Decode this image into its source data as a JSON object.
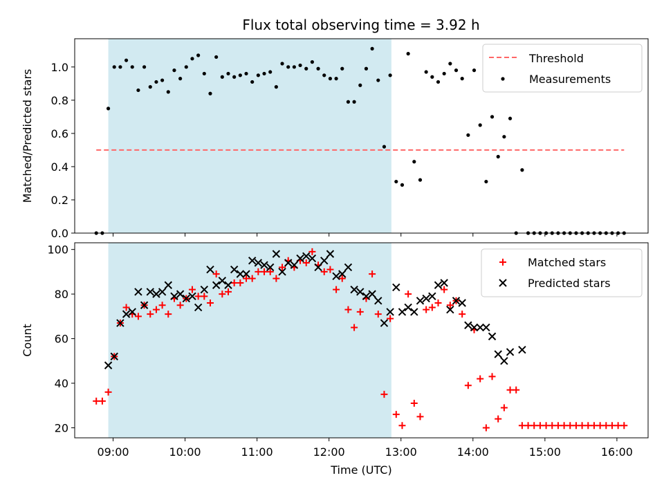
{
  "title": "Flux total observing time = 3.92 h",
  "colors": {
    "shade": "#add8e6",
    "threshold": "#ff6666",
    "measurement": "#000000",
    "matched": "#ff0000",
    "predicted": "#000000"
  },
  "chart_data": [
    {
      "type": "scatter",
      "ylabel": "Matched/Predicted stars",
      "ylim": [
        0,
        1.17
      ],
      "xlim": [
        "08:28",
        "16:26"
      ],
      "yticks": [
        0.0,
        0.2,
        0.4,
        0.6,
        0.8,
        1.0
      ],
      "ytick_labels": [
        "0.0",
        "0.2",
        "0.4",
        "0.6",
        "0.8",
        "1.0"
      ],
      "shaded_span": [
        "08:56",
        "12:52"
      ],
      "legend": "top-right",
      "threshold": {
        "name": "Threshold",
        "value": 0.5,
        "x_range": [
          "08:46",
          "16:06"
        ]
      },
      "series": [
        {
          "name": "Measurements",
          "points": [
            [
              "08:46",
              0.0
            ],
            [
              "08:51",
              0.0
            ],
            [
              "08:56",
              0.75
            ],
            [
              "09:01",
              1.0
            ],
            [
              "09:06",
              1.0
            ],
            [
              "09:11",
              1.04
            ],
            [
              "09:16",
              1.0
            ],
            [
              "09:21",
              0.86
            ],
            [
              "09:26",
              1.0
            ],
            [
              "09:31",
              0.88
            ],
            [
              "09:36",
              0.91
            ],
            [
              "09:41",
              0.92
            ],
            [
              "09:46",
              0.85
            ],
            [
              "09:51",
              0.98
            ],
            [
              "09:56",
              0.93
            ],
            [
              "10:01",
              1.0
            ],
            [
              "10:06",
              1.05
            ],
            [
              "10:11",
              1.07
            ],
            [
              "10:16",
              0.96
            ],
            [
              "10:21",
              0.84
            ],
            [
              "10:26",
              1.06
            ],
            [
              "10:31",
              0.94
            ],
            [
              "10:36",
              0.96
            ],
            [
              "10:41",
              0.94
            ],
            [
              "10:46",
              0.95
            ],
            [
              "10:51",
              0.96
            ],
            [
              "10:56",
              0.91
            ],
            [
              "11:01",
              0.95
            ],
            [
              "11:06",
              0.96
            ],
            [
              "11:11",
              0.97
            ],
            [
              "11:16",
              0.88
            ],
            [
              "11:21",
              1.02
            ],
            [
              "11:26",
              1.0
            ],
            [
              "11:31",
              1.0
            ],
            [
              "11:36",
              1.01
            ],
            [
              "11:41",
              0.99
            ],
            [
              "11:46",
              1.03
            ],
            [
              "11:51",
              0.99
            ],
            [
              "11:56",
              0.95
            ],
            [
              "12:01",
              0.93
            ],
            [
              "12:06",
              0.93
            ],
            [
              "12:11",
              0.99
            ],
            [
              "12:16",
              0.79
            ],
            [
              "12:21",
              0.79
            ],
            [
              "12:26",
              0.89
            ],
            [
              "12:31",
              0.99
            ],
            [
              "12:36",
              1.11
            ],
            [
              "12:41",
              0.92
            ],
            [
              "12:46",
              0.52
            ],
            [
              "12:51",
              0.95
            ],
            [
              "12:56",
              0.31
            ],
            [
              "13:01",
              0.29
            ],
            [
              "13:06",
              1.08
            ],
            [
              "13:11",
              0.43
            ],
            [
              "13:16",
              0.32
            ],
            [
              "13:21",
              0.97
            ],
            [
              "13:26",
              0.94
            ],
            [
              "13:31",
              0.91
            ],
            [
              "13:36",
              0.96
            ],
            [
              "13:41",
              1.02
            ],
            [
              "13:46",
              0.98
            ],
            [
              "13:51",
              0.93
            ],
            [
              "13:56",
              0.59
            ],
            [
              "14:01",
              0.98
            ],
            [
              "14:06",
              0.65
            ],
            [
              "14:11",
              0.31
            ],
            [
              "14:16",
              0.7
            ],
            [
              "14:21",
              0.46
            ],
            [
              "14:26",
              0.58
            ],
            [
              "14:31",
              0.69
            ],
            [
              "14:36",
              0.0
            ],
            [
              "14:41",
              0.38
            ],
            [
              "14:46",
              0.0
            ],
            [
              "14:51",
              0.0
            ],
            [
              "14:56",
              0.0
            ],
            [
              "15:01",
              0.0
            ],
            [
              "15:06",
              0.0
            ],
            [
              "15:11",
              0.0
            ],
            [
              "15:16",
              0.0
            ],
            [
              "15:21",
              0.0
            ],
            [
              "15:26",
              0.0
            ],
            [
              "15:31",
              0.0
            ],
            [
              "15:36",
              0.0
            ],
            [
              "15:41",
              0.0
            ],
            [
              "15:46",
              0.0
            ],
            [
              "15:51",
              0.0
            ],
            [
              "15:56",
              0.0
            ],
            [
              "16:01",
              0.0
            ],
            [
              "16:06",
              0.0
            ]
          ]
        }
      ]
    },
    {
      "type": "scatter",
      "xlabel": "Time (UTC)",
      "ylabel": "Count",
      "ylim": [
        15.5,
        103
      ],
      "xlim": [
        "08:28",
        "16:26"
      ],
      "yticks": [
        20,
        40,
        60,
        80,
        100
      ],
      "ytick_labels": [
        "20",
        "40",
        "60",
        "80",
        "100"
      ],
      "xticks": [
        "09:00",
        "10:00",
        "11:00",
        "12:00",
        "13:00",
        "14:00",
        "15:00",
        "16:00"
      ],
      "xtick_labels": [
        "09:00",
        "10:00",
        "11:00",
        "12:00",
        "13:00",
        "14:00",
        "15:00",
        "16:00"
      ],
      "shaded_span": [
        "08:56",
        "12:52"
      ],
      "legend": "top-right",
      "series": [
        {
          "name": "Matched stars",
          "marker": "plus",
          "points": [
            [
              "08:46",
              32
            ],
            [
              "08:51",
              32
            ],
            [
              "08:56",
              36
            ],
            [
              "09:01",
              52
            ],
            [
              "09:06",
              67
            ],
            [
              "09:11",
              74
            ],
            [
              "09:16",
              71
            ],
            [
              "09:21",
              70
            ],
            [
              "09:26",
              75
            ],
            [
              "09:31",
              71
            ],
            [
              "09:36",
              73
            ],
            [
              "09:41",
              75
            ],
            [
              "09:46",
              71
            ],
            [
              "09:51",
              78
            ],
            [
              "09:56",
              75
            ],
            [
              "10:01",
              78
            ],
            [
              "10:06",
              82
            ],
            [
              "10:11",
              79
            ],
            [
              "10:16",
              79
            ],
            [
              "10:21",
              76
            ],
            [
              "10:26",
              89
            ],
            [
              "10:31",
              80
            ],
            [
              "10:36",
              81
            ],
            [
              "10:41",
              85
            ],
            [
              "10:46",
              85
            ],
            [
              "10:51",
              87
            ],
            [
              "10:56",
              87
            ],
            [
              "11:01",
              90
            ],
            [
              "11:06",
              90
            ],
            [
              "11:11",
              90
            ],
            [
              "11:16",
              87
            ],
            [
              "11:21",
              92
            ],
            [
              "11:26",
              95
            ],
            [
              "11:31",
              92
            ],
            [
              "11:36",
              95
            ],
            [
              "11:41",
              94
            ],
            [
              "11:46",
              99
            ],
            [
              "11:51",
              93
            ],
            [
              "11:56",
              90
            ],
            [
              "12:01",
              91
            ],
            [
              "12:06",
              82
            ],
            [
              "12:11",
              87
            ],
            [
              "12:16",
              73
            ],
            [
              "12:21",
              65
            ],
            [
              "12:26",
              72
            ],
            [
              "12:31",
              78
            ],
            [
              "12:36",
              89
            ],
            [
              "12:41",
              71
            ],
            [
              "12:46",
              35
            ],
            [
              "12:51",
              69
            ],
            [
              "12:56",
              26
            ],
            [
              "13:01",
              21
            ],
            [
              "13:06",
              80
            ],
            [
              "13:11",
              31
            ],
            [
              "13:16",
              25
            ],
            [
              "13:21",
              73
            ],
            [
              "13:26",
              74
            ],
            [
              "13:31",
              76
            ],
            [
              "13:36",
              82
            ],
            [
              "13:41",
              75
            ],
            [
              "13:46",
              77
            ],
            [
              "13:51",
              71
            ],
            [
              "13:56",
              39
            ],
            [
              "14:01",
              64
            ],
            [
              "14:06",
              42
            ],
            [
              "14:11",
              20
            ],
            [
              "14:16",
              43
            ],
            [
              "14:21",
              24
            ],
            [
              "14:26",
              29
            ],
            [
              "14:31",
              37
            ],
            [
              "14:36",
              37
            ],
            [
              "14:41",
              21
            ],
            [
              "14:46",
              21
            ],
            [
              "14:51",
              21
            ],
            [
              "14:56",
              21
            ],
            [
              "15:01",
              21
            ],
            [
              "15:06",
              21
            ],
            [
              "15:11",
              21
            ],
            [
              "15:16",
              21
            ],
            [
              "15:21",
              21
            ],
            [
              "15:26",
              21
            ],
            [
              "15:31",
              21
            ],
            [
              "15:36",
              21
            ],
            [
              "15:41",
              21
            ],
            [
              "15:46",
              21
            ],
            [
              "15:51",
              21
            ],
            [
              "15:56",
              21
            ],
            [
              "16:01",
              21
            ],
            [
              "16:06",
              21
            ]
          ]
        },
        {
          "name": "Predicted stars",
          "marker": "x",
          "points": [
            [
              "08:56",
              48
            ],
            [
              "09:01",
              52
            ],
            [
              "09:06",
              67
            ],
            [
              "09:11",
              71
            ],
            [
              "09:16",
              72
            ],
            [
              "09:21",
              81
            ],
            [
              "09:26",
              75
            ],
            [
              "09:31",
              81
            ],
            [
              "09:36",
              80
            ],
            [
              "09:41",
              81
            ],
            [
              "09:46",
              84
            ],
            [
              "09:51",
              79
            ],
            [
              "09:56",
              80
            ],
            [
              "10:01",
              78
            ],
            [
              "10:06",
              79
            ],
            [
              "10:11",
              74
            ],
            [
              "10:16",
              82
            ],
            [
              "10:21",
              91
            ],
            [
              "10:26",
              84
            ],
            [
              "10:31",
              86
            ],
            [
              "10:36",
              84
            ],
            [
              "10:41",
              91
            ],
            [
              "10:46",
              89
            ],
            [
              "10:51",
              89
            ],
            [
              "10:56",
              95
            ],
            [
              "11:01",
              94
            ],
            [
              "11:06",
              93
            ],
            [
              "11:11",
              92
            ],
            [
              "11:16",
              98
            ],
            [
              "11:21",
              90
            ],
            [
              "11:26",
              94
            ],
            [
              "11:31",
              93
            ],
            [
              "11:36",
              96
            ],
            [
              "11:41",
              97
            ],
            [
              "11:46",
              96
            ],
            [
              "11:51",
              92
            ],
            [
              "11:56",
              95
            ],
            [
              "12:01",
              98
            ],
            [
              "12:06",
              88
            ],
            [
              "12:11",
              89
            ],
            [
              "12:16",
              92
            ],
            [
              "12:21",
              82
            ],
            [
              "12:26",
              81
            ],
            [
              "12:31",
              79
            ],
            [
              "12:36",
              80
            ],
            [
              "12:41",
              77
            ],
            [
              "12:46",
              67
            ],
            [
              "12:51",
              72
            ],
            [
              "12:56",
              83
            ],
            [
              "13:01",
              72
            ],
            [
              "13:06",
              74
            ],
            [
              "13:11",
              72
            ],
            [
              "13:16",
              77
            ],
            [
              "13:21",
              78
            ],
            [
              "13:26",
              79
            ],
            [
              "13:31",
              84
            ],
            [
              "13:36",
              85
            ],
            [
              "13:41",
              73
            ],
            [
              "13:46",
              77
            ],
            [
              "13:51",
              76
            ],
            [
              "13:56",
              66
            ],
            [
              "14:01",
              65
            ],
            [
              "14:06",
              65
            ],
            [
              "14:11",
              65
            ],
            [
              "14:16",
              61
            ],
            [
              "14:21",
              53
            ],
            [
              "14:26",
              50
            ],
            [
              "14:31",
              54
            ],
            [
              "14:41",
              55
            ]
          ]
        }
      ]
    }
  ]
}
